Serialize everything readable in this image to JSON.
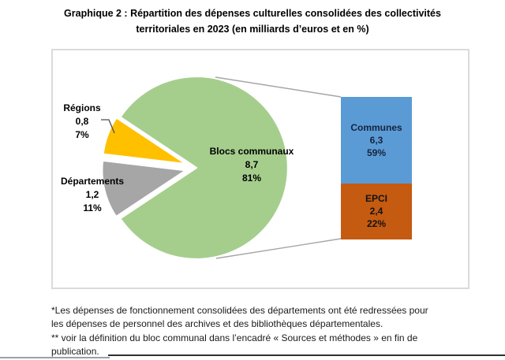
{
  "page": {
    "title_line1": "Graphique 2 : Répartition des dépenses culturelles consolidées des collectivités",
    "title_line2": "territoriales en 2023 (en milliards d’euros et en %)",
    "footnote_lines": [
      "*Les dépenses de fonctionnement consolidées des départements ont été redressées pour",
      "les dépenses de personnel des archives et des bibliothèques départementales.",
      "** voir la définition du bloc communal dans l’encadré « Sources et méthodes » en fin de",
      "publication."
    ]
  },
  "chart_data": {
    "type": "pie-of-pie",
    "title": "Graphique 2 : Répartition des dépenses culturelles consolidées des collectivités territoriales en 2023 (en milliards d’euros et en %)",
    "legend": "none",
    "pie_slices": [
      {
        "label": "Blocs communaux",
        "value": 8.7,
        "value_label": "8,7",
        "pct": "81%",
        "color": "#A5CE8D"
      },
      {
        "label": "Régions",
        "value": 0.8,
        "value_label": "0,8",
        "pct": "7%",
        "color": "#FFC000"
      },
      {
        "label": "Départements",
        "value": 1.2,
        "value_label": "1,2",
        "pct": "11%",
        "color": "#A6A6A6"
      }
    ],
    "bar_segments": [
      {
        "label": "Communes",
        "value": 6.3,
        "value_label": "6,3",
        "pct": "59%",
        "color": "#5B9BD5",
        "text_color": "#16233E"
      },
      {
        "label": "EPCI",
        "value": 2.4,
        "value_label": "2,4",
        "pct": "22%",
        "color": "#C55A11",
        "text_color": "#131313"
      }
    ],
    "layout": {
      "frame_border_color": "#DBDBDB",
      "connector_color": "#A6A6A6",
      "leader_color": "#4D4D4D",
      "slice_separator_color": "#FFFFFF"
    }
  }
}
